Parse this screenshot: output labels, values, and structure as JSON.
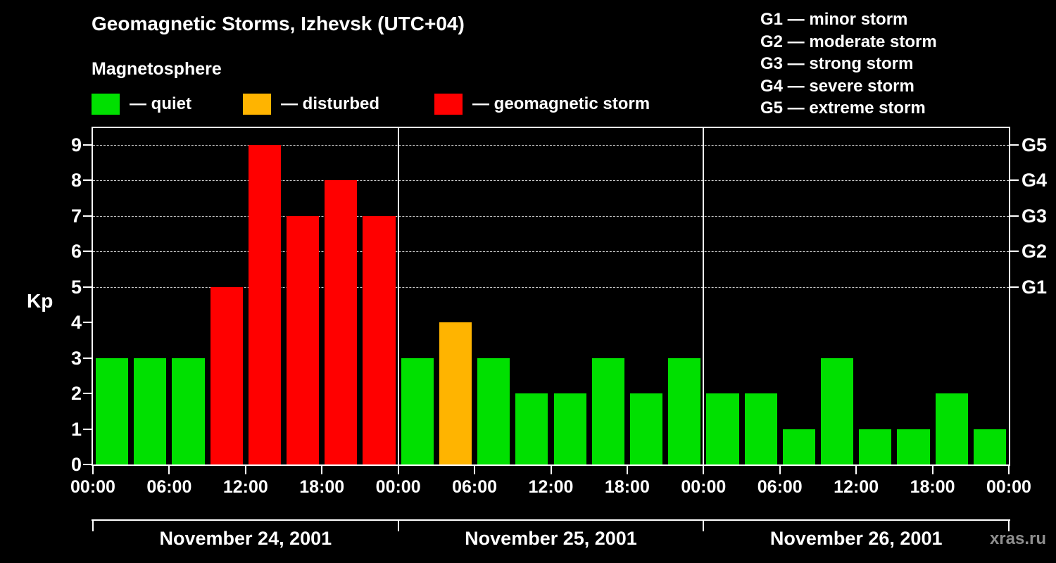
{
  "title": "Geomagnetic Storms, Izhevsk (UTC+04)",
  "subtitle": "Magnetosphere",
  "legend": {
    "items": [
      {
        "label": "— quiet",
        "color": "#00e000"
      },
      {
        "label": "— disturbed",
        "color": "#ffb400"
      },
      {
        "label": "— geomagnetic storm",
        "color": "#ff0000"
      }
    ]
  },
  "storm_scale": [
    "G1 — minor storm",
    "G2 — moderate storm",
    "G3 — strong storm",
    "G4 — severe storm",
    "G5 — extreme storm"
  ],
  "watermark": "xras.ru",
  "chart_data": {
    "type": "bar",
    "title": "Geomagnetic Storms, Izhevsk (UTC+04)",
    "ylabel": "Kp",
    "ylim": [
      0,
      9.45
    ],
    "y_ticks": [
      0,
      1,
      2,
      3,
      4,
      5,
      6,
      7,
      8,
      9
    ],
    "gridlines_at": [
      5,
      6,
      7,
      8,
      9
    ],
    "grid_style": "dashed",
    "g_levels": [
      {
        "label": "G1",
        "kp": 5
      },
      {
        "label": "G2",
        "kp": 6
      },
      {
        "label": "G3",
        "kp": 7
      },
      {
        "label": "G4",
        "kp": 8
      },
      {
        "label": "G5",
        "kp": 9
      }
    ],
    "x_tick_labels": [
      "00:00",
      "06:00",
      "12:00",
      "18:00",
      "00:00",
      "06:00",
      "12:00",
      "18:00",
      "00:00",
      "06:00",
      "12:00",
      "18:00",
      "00:00"
    ],
    "bar_interval_hours": 3,
    "days": [
      {
        "date": "November 24, 2001",
        "kp": [
          3,
          3,
          3,
          5,
          9,
          7,
          8,
          7
        ]
      },
      {
        "date": "November 25, 2001",
        "kp": [
          3,
          4,
          3,
          2,
          2,
          3,
          2,
          3
        ]
      },
      {
        "date": "November 26, 2001",
        "kp": [
          2,
          2,
          1,
          3,
          1,
          1,
          2,
          1
        ]
      }
    ],
    "colors": {
      "quiet": "#00e000",
      "disturbed": "#ffb400",
      "storm": "#ff0000"
    },
    "color_rule": "kp<=3 quiet, kp=4 disturbed, kp>=5 storm"
  }
}
